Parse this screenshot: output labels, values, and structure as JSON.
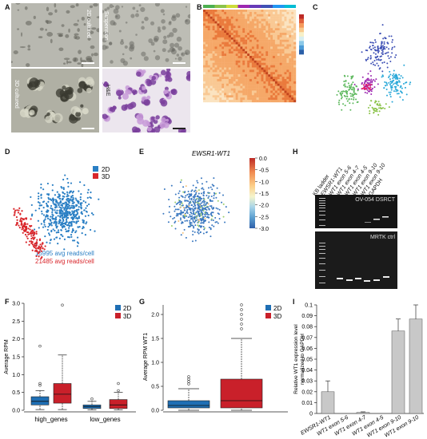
{
  "panels": {
    "A": "A",
    "B": "B",
    "C": "C",
    "D": "D",
    "E": "E",
    "F": "F",
    "G": "G",
    "H": "H",
    "I": "I"
  },
  "panel_a": {
    "labels": [
      "2D cultured",
      "Suspension",
      "3D cultured",
      "H&E"
    ]
  },
  "panel_b": {
    "colorbar_colors": [
      "#2b5fa8",
      "#4c9bd6",
      "#8cc9e8",
      "#d7eef0",
      "#f7f0c8",
      "#f9c98c",
      "#f59a5c",
      "#e0603c",
      "#bd2a26"
    ]
  },
  "panel_d": {
    "legend": [
      {
        "label": "2D",
        "color": "#2a7fc4"
      },
      {
        "label": "3D",
        "color": "#d9262b"
      }
    ],
    "notes": [
      {
        "text": "15995 avg reads/cell",
        "color": "#2a7fc4"
      },
      {
        "text": "21485 avg reads/cell",
        "color": "#d9262b"
      }
    ]
  },
  "panel_e": {
    "title": "EWSR1-WT1",
    "colorbar_ticks": [
      "0.0",
      "-0.5",
      "-1.0",
      "-1.5",
      "-2.0",
      "-2.5",
      "-3.0"
    ]
  },
  "panel_h": {
    "lanes": [
      "KB ladder",
      "EWSR1-WT1",
      "WT1 exon 5-6",
      "WT1 exon 4-7",
      "WT1 exon 4-5",
      "WT1 exon 9-10",
      "WT1 exon 9-10",
      "GAPDH"
    ],
    "gel_top_label": "OV-054 DSRCT",
    "gel_bottom_label": "MRTK ctrl"
  },
  "chart_data": [
    {
      "panel": "F",
      "type": "box",
      "ylabel": "Average RPM",
      "ylim": [
        0,
        3.0
      ],
      "yticks": [
        "0.0",
        "0.5",
        "1.0",
        "1.5",
        "2.0",
        "2.5",
        "3.0"
      ],
      "categories": [
        "high_genes",
        "low_genes"
      ],
      "legend": [
        {
          "label": "2D",
          "color": "#1f6fb4"
        },
        {
          "label": "3D",
          "color": "#c9202a"
        }
      ],
      "series": [
        {
          "name": "2D",
          "boxes": [
            {
              "q1": 0.15,
              "median": 0.25,
              "q3": 0.38,
              "whisker_low": 0.02,
              "whisker_high": 0.55,
              "outliers": [
                0.7,
                0.75,
                1.8
              ]
            },
            {
              "q1": 0.05,
              "median": 0.1,
              "q3": 0.15,
              "whisker_low": 0.01,
              "whisker_high": 0.25,
              "outliers": [
                0.32
              ]
            }
          ]
        },
        {
          "name": "3D",
          "boxes": [
            {
              "q1": 0.2,
              "median": 0.45,
              "q3": 0.75,
              "whisker_low": 0.02,
              "whisker_high": 1.55,
              "outliers": [
                2.95
              ]
            },
            {
              "q1": 0.05,
              "median": 0.15,
              "q3": 0.3,
              "whisker_low": 0.01,
              "whisker_high": 0.5,
              "outliers": [
                0.55,
                0.75
              ]
            }
          ]
        }
      ]
    },
    {
      "panel": "G",
      "type": "box",
      "ylabel": "Average RPM WT1",
      "ylim": [
        0,
        2.2
      ],
      "yticks": [
        "0.0",
        "0.5",
        "1.0",
        "1.5",
        "2.0"
      ],
      "legend": [
        {
          "label": "2D",
          "color": "#1f6fb4"
        },
        {
          "label": "3D",
          "color": "#c9202a"
        }
      ],
      "series": [
        {
          "name": "2D",
          "q1": 0.05,
          "median": 0.1,
          "q3": 0.2,
          "whisker_low": 0.0,
          "whisker_high": 0.45,
          "outliers": [
            0.55,
            0.6,
            0.65,
            0.7
          ]
        },
        {
          "name": "3D",
          "q1": 0.05,
          "median": 0.2,
          "q3": 0.65,
          "whisker_low": 0.0,
          "whisker_high": 1.5,
          "outliers": [
            1.7,
            1.8,
            1.9,
            2.0,
            2.1,
            2.2
          ]
        }
      ]
    },
    {
      "panel": "I",
      "type": "bar",
      "ylabel": "Relative WT1 expression level normalized to GAPDH",
      "ylim": [
        0,
        0.1
      ],
      "yticks": [
        "0",
        "0.01",
        "0.02",
        "0.03",
        "0.04",
        "0.05",
        "0.06",
        "0.07",
        "0.08",
        "0.09",
        "0.1"
      ],
      "categories": [
        "EWSR1-WT1",
        "WT1 exon 5-6",
        "WT1 exon 4-7",
        "WT1 exon 4-5",
        "WT1 exon 9-10",
        "WT1 exon 9-10"
      ],
      "values": [
        0.02,
        0.0,
        0.001,
        0.0,
        0.076,
        0.087
      ],
      "errors": [
        0.01,
        0.0,
        0.0005,
        0.0,
        0.011,
        0.013
      ],
      "color": "#c8c8c8"
    }
  ]
}
